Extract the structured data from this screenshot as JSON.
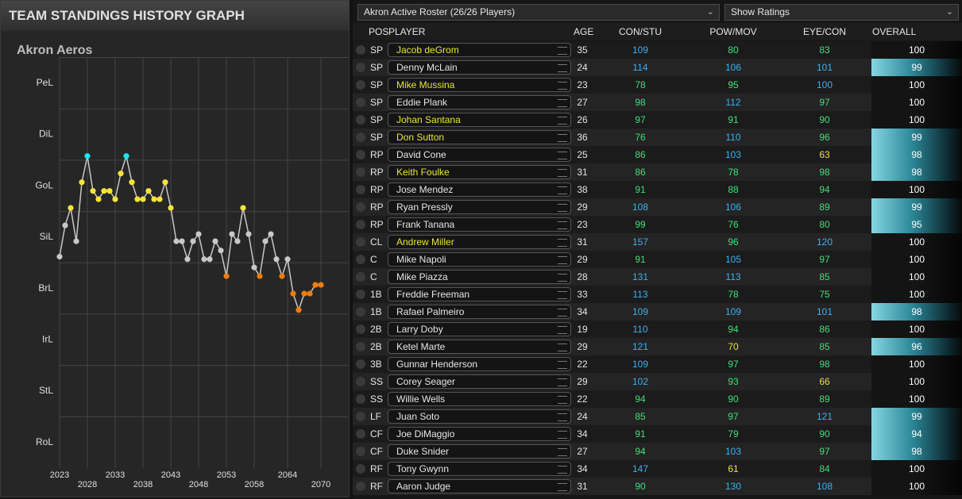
{
  "panel_title": "TEAM STANDINGS HISTORY GRAPH",
  "chart_data": {
    "type": "line",
    "title": "Akron Aeros",
    "x": [
      2023,
      2024,
      2025,
      2026,
      2027,
      2028,
      2029,
      2030,
      2031,
      2032,
      2033,
      2034,
      2035,
      2036,
      2037,
      2038,
      2039,
      2040,
      2041,
      2042,
      2043,
      2044,
      2045,
      2046,
      2047,
      2048,
      2049,
      2050,
      2051,
      2052,
      2053,
      2054,
      2055,
      2056,
      2057,
      2058,
      2059,
      2060,
      2061,
      2062,
      2063,
      2064,
      2065,
      2066,
      2067,
      2068,
      2069,
      2070
    ],
    "series": [
      {
        "color": "#c8c8c8",
        "values": [
          4.62,
          5.23,
          5.57,
          4.92,
          6.07,
          6.58,
          5.9,
          5.74,
          5.9,
          5.9,
          5.74,
          6.24,
          6.58,
          6.07,
          5.74,
          5.74,
          5.9,
          5.74,
          5.74,
          6.07,
          5.57,
          4.92,
          4.92,
          4.57,
          4.92,
          5.06,
          4.57,
          4.57,
          4.92,
          4.74,
          4.24,
          5.06,
          4.92,
          5.57,
          5.06,
          4.41,
          4.24,
          4.92,
          5.06,
          4.57,
          4.24,
          4.57,
          3.9,
          3.58,
          3.9,
          3.9,
          4.07,
          4.07
        ],
        "point_colors": [
          "#c8c8c8",
          "#c8c8c8",
          "#f5e33a",
          "#c8c8c8",
          "#f5e33a",
          "#19e6f0",
          "#f5e33a",
          "#f5e33a",
          "#f5e33a",
          "#f5e33a",
          "#f5e33a",
          "#f5e33a",
          "#19e6f0",
          "#f5e33a",
          "#f5e33a",
          "#f5e33a",
          "#f5e33a",
          "#f5e33a",
          "#f5e33a",
          "#f5e33a",
          "#f5e33a",
          "#c8c8c8",
          "#c8c8c8",
          "#c8c8c8",
          "#c8c8c8",
          "#c8c8c8",
          "#c8c8c8",
          "#c8c8c8",
          "#c8c8c8",
          "#c8c8c8",
          "#f07d0a",
          "#c8c8c8",
          "#c8c8c8",
          "#f5e33a",
          "#c8c8c8",
          "#c8c8c8",
          "#f07d0a",
          "#c8c8c8",
          "#c8c8c8",
          "#c8c8c8",
          "#f07d0a",
          "#c8c8c8",
          "#f07d0a",
          "#f07d0a",
          "#f07d0a",
          "#f07d0a",
          "#f07d0a",
          "#f07d0a"
        ]
      }
    ],
    "xlim": [
      2022,
      2072
    ],
    "xticks": [
      2023,
      2028,
      2033,
      2038,
      2043,
      2048,
      2053,
      2058,
      2064,
      2070
    ],
    "ylim": [
      0.5,
      8.4
    ],
    "yticks": [
      {
        "value": 8,
        "label": "PeL"
      },
      {
        "value": 7,
        "label": "DiL"
      },
      {
        "value": 6,
        "label": "GoL"
      },
      {
        "value": 5,
        "label": "SiL"
      },
      {
        "value": 4,
        "label": "BrL"
      },
      {
        "value": 3,
        "label": "IrL"
      },
      {
        "value": 2,
        "label": "StL"
      },
      {
        "value": 1,
        "label": "RoL"
      }
    ],
    "grid": true
  },
  "roster": {
    "selector": "Akron Active Roster (26/26 Players)",
    "view": "Show Ratings",
    "columns": {
      "pos": "POS",
      "player": "PLAYER",
      "age": "AGE",
      "con_stu": "CON/STU",
      "pow_mov": "POW/MOV",
      "eye_con": "EYE/CON",
      "overall": "OVERALL"
    },
    "rows": [
      {
        "pos": "SP",
        "player": "Jacob deGrom",
        "age": 35,
        "con_stu": 109,
        "pow_mov": 80,
        "eye_con": 83,
        "overall": 100,
        "name_color": "#e8e830"
      },
      {
        "pos": "SP",
        "player": "Denny McLain",
        "age": 24,
        "con_stu": 114,
        "pow_mov": 106,
        "eye_con": 101,
        "overall": 99,
        "name_color": "#e6e6e6"
      },
      {
        "pos": "SP",
        "player": "Mike Mussina",
        "age": 23,
        "con_stu": 78,
        "pow_mov": 95,
        "eye_con": 100,
        "overall": 100,
        "name_color": "#e8e830"
      },
      {
        "pos": "SP",
        "player": "Eddie Plank",
        "age": 27,
        "con_stu": 98,
        "pow_mov": 112,
        "eye_con": 97,
        "overall": 100,
        "name_color": "#e6e6e6"
      },
      {
        "pos": "SP",
        "player": "Johan Santana",
        "age": 26,
        "con_stu": 97,
        "pow_mov": 91,
        "eye_con": 90,
        "overall": 100,
        "name_color": "#e8e830"
      },
      {
        "pos": "SP",
        "player": "Don Sutton",
        "age": 36,
        "con_stu": 76,
        "pow_mov": 110,
        "eye_con": 96,
        "overall": 99,
        "name_color": "#e8e830"
      },
      {
        "pos": "RP",
        "player": "David Cone",
        "age": 25,
        "con_stu": 86,
        "pow_mov": 103,
        "eye_con": 63,
        "overall": 98,
        "name_color": "#e6e6e6"
      },
      {
        "pos": "RP",
        "player": "Keith Foulke",
        "age": 31,
        "con_stu": 86,
        "pow_mov": 78,
        "eye_con": 98,
        "overall": 98,
        "name_color": "#e8e830"
      },
      {
        "pos": "RP",
        "player": "Jose Mendez",
        "age": 38,
        "con_stu": 91,
        "pow_mov": 88,
        "eye_con": 94,
        "overall": 100,
        "name_color": "#e6e6e6"
      },
      {
        "pos": "RP",
        "player": "Ryan Pressly",
        "age": 29,
        "con_stu": 108,
        "pow_mov": 106,
        "eye_con": 89,
        "overall": 99,
        "name_color": "#e6e6e6"
      },
      {
        "pos": "RP",
        "player": "Frank Tanana",
        "age": 23,
        "con_stu": 99,
        "pow_mov": 76,
        "eye_con": 80,
        "overall": 95,
        "name_color": "#e6e6e6"
      },
      {
        "pos": "CL",
        "player": "Andrew Miller",
        "age": 31,
        "con_stu": 157,
        "pow_mov": 96,
        "eye_con": 120,
        "overall": 100,
        "name_color": "#e8e830"
      },
      {
        "pos": "C",
        "player": "Mike Napoli",
        "age": 29,
        "con_stu": 91,
        "pow_mov": 105,
        "eye_con": 97,
        "overall": 100,
        "name_color": "#e6e6e6"
      },
      {
        "pos": "C",
        "player": "Mike Piazza",
        "age": 28,
        "con_stu": 131,
        "pow_mov": 113,
        "eye_con": 85,
        "overall": 100,
        "name_color": "#e6e6e6"
      },
      {
        "pos": "1B",
        "player": "Freddie Freeman",
        "age": 33,
        "con_stu": 113,
        "pow_mov": 78,
        "eye_con": 75,
        "overall": 100,
        "name_color": "#e6e6e6"
      },
      {
        "pos": "1B",
        "player": "Rafael Palmeiro",
        "age": 34,
        "con_stu": 109,
        "pow_mov": 109,
        "eye_con": 101,
        "overall": 98,
        "name_color": "#e6e6e6"
      },
      {
        "pos": "2B",
        "player": "Larry Doby",
        "age": 19,
        "con_stu": 110,
        "pow_mov": 94,
        "eye_con": 86,
        "overall": 100,
        "name_color": "#e6e6e6"
      },
      {
        "pos": "2B",
        "player": "Ketel Marte",
        "age": 29,
        "con_stu": 121,
        "pow_mov": 70,
        "eye_con": 85,
        "overall": 96,
        "name_color": "#e6e6e6"
      },
      {
        "pos": "3B",
        "player": "Gunnar Henderson",
        "age": 22,
        "con_stu": 109,
        "pow_mov": 97,
        "eye_con": 98,
        "overall": 100,
        "name_color": "#e6e6e6"
      },
      {
        "pos": "SS",
        "player": "Corey Seager",
        "age": 29,
        "con_stu": 102,
        "pow_mov": 93,
        "eye_con": 66,
        "overall": 100,
        "name_color": "#e6e6e6"
      },
      {
        "pos": "SS",
        "player": "Willie Wells",
        "age": 22,
        "con_stu": 94,
        "pow_mov": 90,
        "eye_con": 89,
        "overall": 100,
        "name_color": "#e6e6e6"
      },
      {
        "pos": "LF",
        "player": "Juan Soto",
        "age": 24,
        "con_stu": 85,
        "pow_mov": 97,
        "eye_con": 121,
        "overall": 99,
        "name_color": "#e6e6e6"
      },
      {
        "pos": "CF",
        "player": "Joe DiMaggio",
        "age": 34,
        "con_stu": 91,
        "pow_mov": 79,
        "eye_con": 90,
        "overall": 94,
        "name_color": "#e6e6e6"
      },
      {
        "pos": "CF",
        "player": "Duke Snider",
        "age": 27,
        "con_stu": 94,
        "pow_mov": 103,
        "eye_con": 97,
        "overall": 98,
        "name_color": "#e6e6e6"
      },
      {
        "pos": "RF",
        "player": "Tony Gwynn",
        "age": 34,
        "con_stu": 147,
        "pow_mov": 61,
        "eye_con": 84,
        "overall": 100,
        "name_color": "#e6e6e6"
      },
      {
        "pos": "RF",
        "player": "Aaron Judge",
        "age": 31,
        "con_stu": 90,
        "pow_mov": 130,
        "eye_con": 108,
        "overall": 100,
        "name_color": "#e6e6e6"
      }
    ]
  }
}
